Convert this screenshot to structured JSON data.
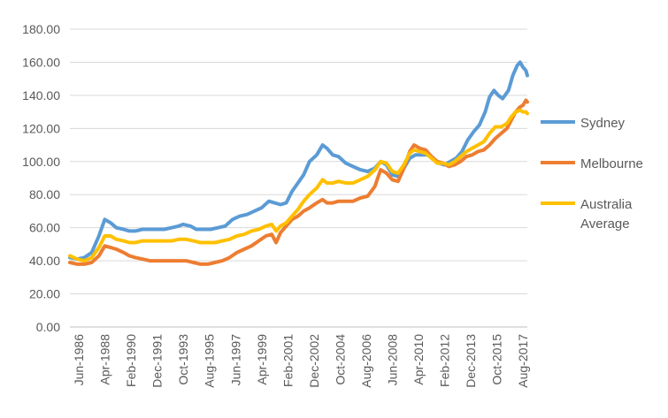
{
  "chart_data": {
    "type": "line",
    "title": "",
    "xlabel": "",
    "ylabel": "",
    "ylim": [
      0,
      180
    ],
    "yticks": [
      0,
      20,
      40,
      60,
      80,
      100,
      120,
      140,
      160,
      180
    ],
    "ytick_labels": [
      "0.00",
      "20.00",
      "40.00",
      "60.00",
      "80.00",
      "100.00",
      "120.00",
      "140.00",
      "160.00",
      "180.00"
    ],
    "xtick_labels": [
      "Jun-1986",
      "Apr-1988",
      "Feb-1990",
      "Dec-1991",
      "Oct-1993",
      "Aug-1995",
      "Jun-1997",
      "Apr-1999",
      "Feb-2001",
      "Dec-2002",
      "Oct-2004",
      "Aug-2006",
      "Jun-2008",
      "Apr-2010",
      "Feb-2012",
      "Dec-2013",
      "Oct-2015",
      "Aug-2017"
    ],
    "grid": "horizontal",
    "legend_position": "right",
    "x_range": [
      1986.5,
      2018.0
    ],
    "series": [
      {
        "name": "Sydney",
        "color": "#5B9BD5",
        "points": [
          [
            1986.5,
            42
          ],
          [
            1987.0,
            41
          ],
          [
            1987.5,
            42
          ],
          [
            1988.0,
            45
          ],
          [
            1988.5,
            55
          ],
          [
            1988.9,
            65
          ],
          [
            1989.3,
            63
          ],
          [
            1989.7,
            60
          ],
          [
            1990.2,
            59
          ],
          [
            1990.6,
            58
          ],
          [
            1991.0,
            58
          ],
          [
            1991.5,
            59
          ],
          [
            1992.0,
            59
          ],
          [
            1992.5,
            59
          ],
          [
            1993.0,
            59
          ],
          [
            1993.5,
            60
          ],
          [
            1994.0,
            61
          ],
          [
            1994.3,
            62
          ],
          [
            1994.8,
            61
          ],
          [
            1995.2,
            59
          ],
          [
            1995.7,
            59
          ],
          [
            1996.2,
            59
          ],
          [
            1996.7,
            60
          ],
          [
            1997.2,
            61
          ],
          [
            1997.7,
            65
          ],
          [
            1998.2,
            67
          ],
          [
            1998.7,
            68
          ],
          [
            1999.2,
            70
          ],
          [
            1999.7,
            72
          ],
          [
            2000.2,
            76
          ],
          [
            2000.6,
            75
          ],
          [
            2001.0,
            74
          ],
          [
            2001.4,
            75
          ],
          [
            2001.8,
            82
          ],
          [
            2002.2,
            87
          ],
          [
            2002.6,
            92
          ],
          [
            2003.0,
            100
          ],
          [
            2003.5,
            104
          ],
          [
            2003.9,
            110
          ],
          [
            2004.2,
            108
          ],
          [
            2004.6,
            104
          ],
          [
            2005.0,
            103
          ],
          [
            2005.5,
            99
          ],
          [
            2006.0,
            97
          ],
          [
            2006.5,
            95
          ],
          [
            2007.0,
            94
          ],
          [
            2007.5,
            96
          ],
          [
            2007.9,
            100
          ],
          [
            2008.3,
            98
          ],
          [
            2008.7,
            92
          ],
          [
            2009.1,
            91
          ],
          [
            2009.5,
            96
          ],
          [
            2009.9,
            102
          ],
          [
            2010.3,
            104
          ],
          [
            2010.7,
            104
          ],
          [
            2011.1,
            104
          ],
          [
            2011.5,
            102
          ],
          [
            2011.9,
            99
          ],
          [
            2012.3,
            98
          ],
          [
            2012.7,
            100
          ],
          [
            2013.1,
            102
          ],
          [
            2013.5,
            106
          ],
          [
            2013.9,
            113
          ],
          [
            2014.3,
            118
          ],
          [
            2014.7,
            122
          ],
          [
            2015.1,
            130
          ],
          [
            2015.4,
            139
          ],
          [
            2015.7,
            143
          ],
          [
            2016.0,
            140
          ],
          [
            2016.3,
            138
          ],
          [
            2016.7,
            143
          ],
          [
            2017.0,
            152
          ],
          [
            2017.3,
            158
          ],
          [
            2017.5,
            160
          ],
          [
            2017.7,
            157
          ],
          [
            2017.9,
            155
          ],
          [
            2018.0,
            152
          ]
        ]
      },
      {
        "name": "Melbourne",
        "color": "#ED7D31",
        "points": [
          [
            1986.5,
            39
          ],
          [
            1987.0,
            38
          ],
          [
            1987.5,
            38
          ],
          [
            1988.0,
            39
          ],
          [
            1988.5,
            43
          ],
          [
            1988.9,
            49
          ],
          [
            1989.3,
            48
          ],
          [
            1989.7,
            47
          ],
          [
            1990.2,
            45
          ],
          [
            1990.6,
            43
          ],
          [
            1991.0,
            42
          ],
          [
            1991.5,
            41
          ],
          [
            1992.0,
            40
          ],
          [
            1992.5,
            40
          ],
          [
            1993.0,
            40
          ],
          [
            1993.5,
            40
          ],
          [
            1994.0,
            40
          ],
          [
            1994.5,
            40
          ],
          [
            1995.0,
            39
          ],
          [
            1995.5,
            38
          ],
          [
            1996.0,
            38
          ],
          [
            1996.5,
            39
          ],
          [
            1997.0,
            40
          ],
          [
            1997.5,
            42
          ],
          [
            1998.0,
            45
          ],
          [
            1998.5,
            47
          ],
          [
            1999.0,
            49
          ],
          [
            1999.5,
            52
          ],
          [
            2000.0,
            55
          ],
          [
            2000.4,
            56
          ],
          [
            2000.7,
            51
          ],
          [
            2001.0,
            57
          ],
          [
            2001.4,
            61
          ],
          [
            2001.8,
            65
          ],
          [
            2002.2,
            67
          ],
          [
            2002.6,
            70
          ],
          [
            2003.0,
            72
          ],
          [
            2003.5,
            75
          ],
          [
            2003.9,
            77
          ],
          [
            2004.2,
            75
          ],
          [
            2004.6,
            75
          ],
          [
            2005.0,
            76
          ],
          [
            2005.5,
            76
          ],
          [
            2006.0,
            76
          ],
          [
            2006.5,
            78
          ],
          [
            2007.0,
            79
          ],
          [
            2007.5,
            85
          ],
          [
            2007.9,
            95
          ],
          [
            2008.3,
            93
          ],
          [
            2008.7,
            89
          ],
          [
            2009.1,
            88
          ],
          [
            2009.5,
            96
          ],
          [
            2009.9,
            106
          ],
          [
            2010.2,
            110
          ],
          [
            2010.6,
            108
          ],
          [
            2011.0,
            107
          ],
          [
            2011.4,
            103
          ],
          [
            2011.8,
            100
          ],
          [
            2012.2,
            99
          ],
          [
            2012.6,
            97
          ],
          [
            2013.0,
            98
          ],
          [
            2013.4,
            100
          ],
          [
            2013.8,
            103
          ],
          [
            2014.2,
            104
          ],
          [
            2014.6,
            106
          ],
          [
            2015.0,
            107
          ],
          [
            2015.4,
            110
          ],
          [
            2015.8,
            114
          ],
          [
            2016.2,
            117
          ],
          [
            2016.6,
            120
          ],
          [
            2016.9,
            125
          ],
          [
            2017.2,
            130
          ],
          [
            2017.5,
            133
          ],
          [
            2017.7,
            134
          ],
          [
            2017.9,
            137
          ],
          [
            2018.0,
            136
          ]
        ]
      },
      {
        "name": "Australia Average",
        "color": "#FFC000",
        "points": [
          [
            1986.5,
            43
          ],
          [
            1987.0,
            41
          ],
          [
            1987.5,
            40
          ],
          [
            1988.0,
            42
          ],
          [
            1988.5,
            48
          ],
          [
            1988.9,
            55
          ],
          [
            1989.3,
            55
          ],
          [
            1989.7,
            53
          ],
          [
            1990.2,
            52
          ],
          [
            1990.6,
            51
          ],
          [
            1991.0,
            51
          ],
          [
            1991.5,
            52
          ],
          [
            1992.0,
            52
          ],
          [
            1992.5,
            52
          ],
          [
            1993.0,
            52
          ],
          [
            1993.5,
            52
          ],
          [
            1994.0,
            53
          ],
          [
            1994.5,
            53
          ],
          [
            1995.0,
            52
          ],
          [
            1995.5,
            51
          ],
          [
            1996.0,
            51
          ],
          [
            1996.5,
            51
          ],
          [
            1997.0,
            52
          ],
          [
            1997.5,
            53
          ],
          [
            1998.0,
            55
          ],
          [
            1998.5,
            56
          ],
          [
            1999.0,
            58
          ],
          [
            1999.5,
            59
          ],
          [
            2000.0,
            61
          ],
          [
            2000.4,
            62
          ],
          [
            2000.7,
            58
          ],
          [
            2001.0,
            61
          ],
          [
            2001.4,
            63
          ],
          [
            2001.8,
            67
          ],
          [
            2002.2,
            71
          ],
          [
            2002.6,
            76
          ],
          [
            2003.0,
            80
          ],
          [
            2003.5,
            84
          ],
          [
            2003.9,
            89
          ],
          [
            2004.2,
            87
          ],
          [
            2004.6,
            87
          ],
          [
            2005.0,
            88
          ],
          [
            2005.5,
            87
          ],
          [
            2006.0,
            87
          ],
          [
            2006.5,
            89
          ],
          [
            2007.0,
            91
          ],
          [
            2007.5,
            95
          ],
          [
            2007.9,
            100
          ],
          [
            2008.3,
            99
          ],
          [
            2008.7,
            94
          ],
          [
            2009.1,
            93
          ],
          [
            2009.5,
            98
          ],
          [
            2009.9,
            105
          ],
          [
            2010.2,
            107
          ],
          [
            2010.6,
            106
          ],
          [
            2011.0,
            105
          ],
          [
            2011.4,
            102
          ],
          [
            2011.8,
            99
          ],
          [
            2012.2,
            99
          ],
          [
            2012.6,
            98
          ],
          [
            2013.0,
            100
          ],
          [
            2013.4,
            103
          ],
          [
            2013.8,
            106
          ],
          [
            2014.2,
            108
          ],
          [
            2014.6,
            110
          ],
          [
            2015.0,
            112
          ],
          [
            2015.4,
            117
          ],
          [
            2015.8,
            121
          ],
          [
            2016.2,
            121
          ],
          [
            2016.6,
            123
          ],
          [
            2016.9,
            127
          ],
          [
            2017.2,
            130
          ],
          [
            2017.5,
            131
          ],
          [
            2017.7,
            130
          ],
          [
            2017.9,
            130
          ],
          [
            2018.0,
            129
          ]
        ]
      }
    ]
  }
}
